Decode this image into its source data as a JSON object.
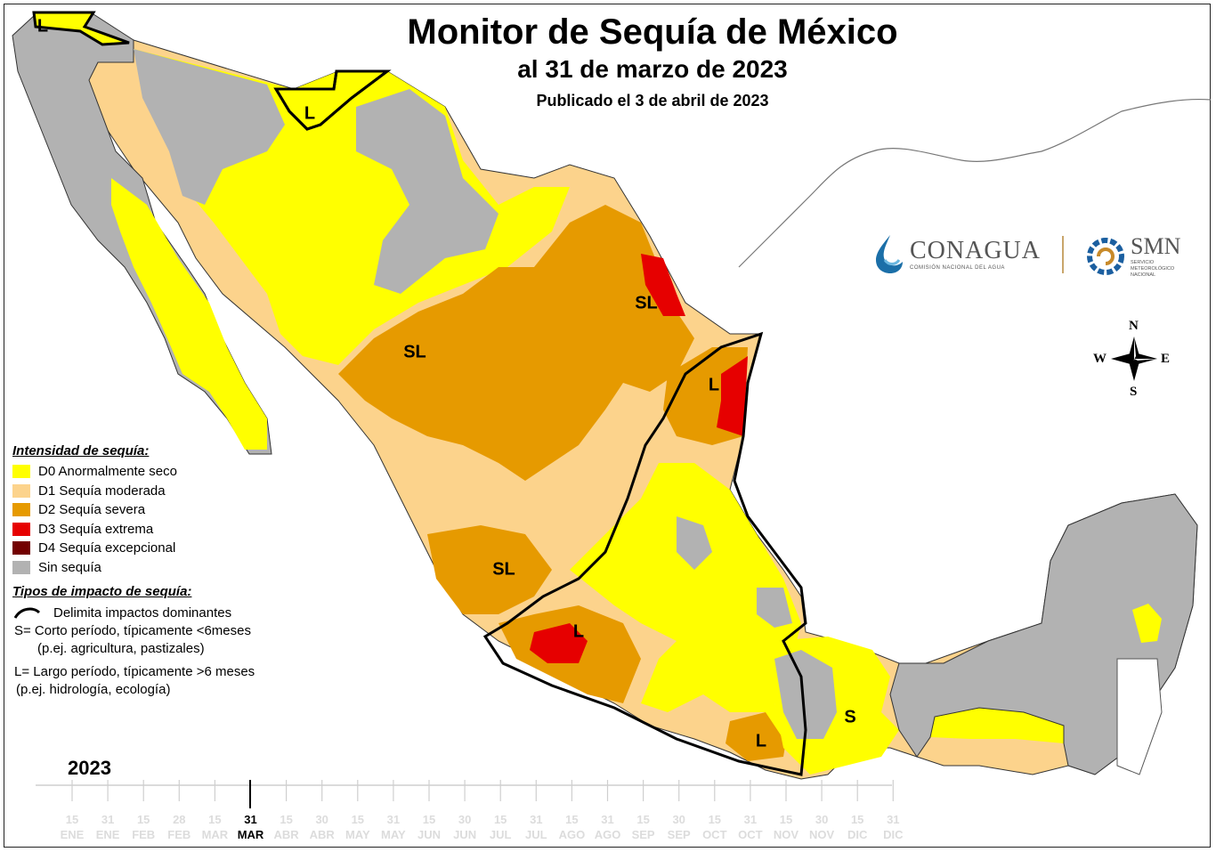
{
  "header": {
    "title": "Monitor de Sequía de México",
    "subtitle": "al 31 de marzo de 2023",
    "published": "Publicado el 3 de abril de 2023"
  },
  "logos": {
    "conagua_name": "CONAGUA",
    "conagua_sub": "COMISIÓN NACIONAL DEL AGUA",
    "smn_name": "SMN",
    "smn_sub": "SERVICIO METEOROLÓGICO NACIONAL"
  },
  "compass": {
    "n": "N",
    "s": "S",
    "e": "E",
    "w": "W"
  },
  "legend": {
    "intensity_title": "Intensidad de sequía:",
    "categories": [
      {
        "label": "D0 Anormalmente seco",
        "color": "#ffff00"
      },
      {
        "label": "D1 Sequía moderada",
        "color": "#fcd38c"
      },
      {
        "label": "D2 Sequía severa",
        "color": "#e69a00"
      },
      {
        "label": "D3 Sequía extrema",
        "color": "#e60000"
      },
      {
        "label": "D4 Sequía excepcional",
        "color": "#730000"
      },
      {
        "label": "Sin sequía",
        "color": "#b2b2b2"
      }
    ],
    "impact_title": "Tipos de impacto de sequía:",
    "impact_line": "Delimita impactos dominantes",
    "short_term": "S= Corto período, típicamente <6meses",
    "short_examples": "(p.ej. agricultura, pastizales)",
    "long_term": "L= Largo período, típicamente >6 meses",
    "long_examples": "(p.ej. hidrología, ecología)"
  },
  "map_labels": [
    "L",
    "L",
    "SL",
    "SL",
    "L",
    "SL",
    "L",
    "S",
    "L"
  ],
  "timeline": {
    "year": "2023",
    "current_index": 5,
    "ticks": [
      {
        "day": "15",
        "month": "ENE"
      },
      {
        "day": "31",
        "month": "ENE"
      },
      {
        "day": "15",
        "month": "FEB"
      },
      {
        "day": "28",
        "month": "FEB"
      },
      {
        "day": "15",
        "month": "MAR"
      },
      {
        "day": "31",
        "month": "MAR"
      },
      {
        "day": "15",
        "month": "ABR"
      },
      {
        "day": "30",
        "month": "ABR"
      },
      {
        "day": "15",
        "month": "MAY"
      },
      {
        "day": "31",
        "month": "MAY"
      },
      {
        "day": "15",
        "month": "JUN"
      },
      {
        "day": "30",
        "month": "JUN"
      },
      {
        "day": "15",
        "month": "JUL"
      },
      {
        "day": "31",
        "month": "JUL"
      },
      {
        "day": "15",
        "month": "AGO"
      },
      {
        "day": "31",
        "month": "AGO"
      },
      {
        "day": "15",
        "month": "SEP"
      },
      {
        "day": "30",
        "month": "SEP"
      },
      {
        "day": "15",
        "month": "OCT"
      },
      {
        "day": "31",
        "month": "OCT"
      },
      {
        "day": "15",
        "month": "NOV"
      },
      {
        "day": "30",
        "month": "NOV"
      },
      {
        "day": "15",
        "month": "DIC"
      },
      {
        "day": "31",
        "month": "DIC"
      }
    ]
  }
}
